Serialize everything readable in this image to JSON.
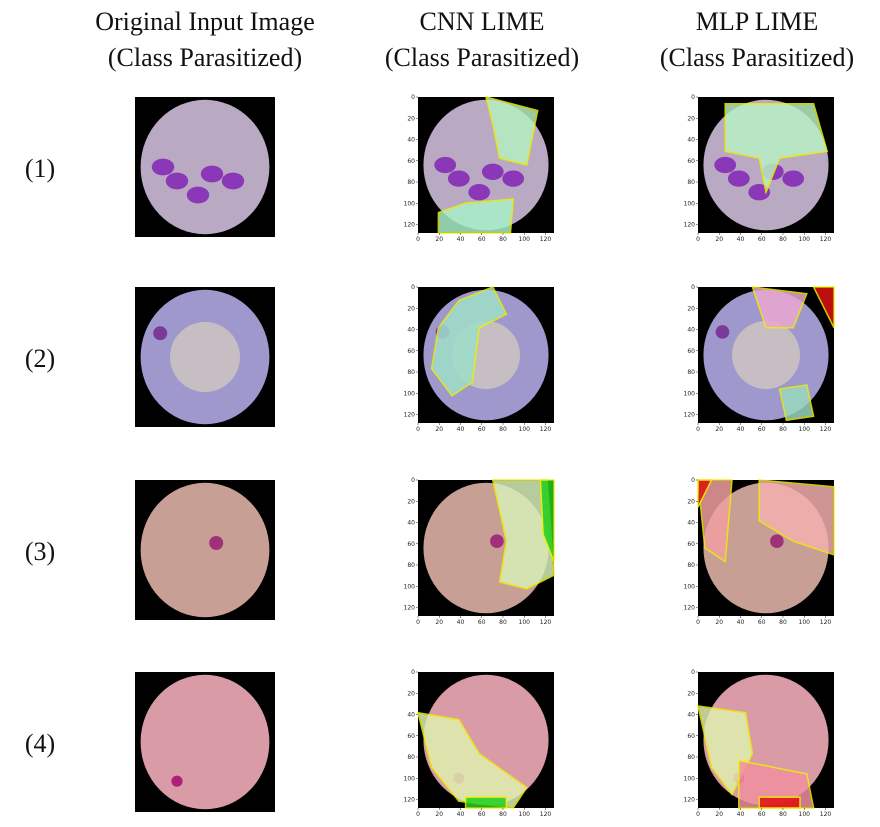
{
  "headers": [
    {
      "line1": "Original Input Image",
      "line2": "(Class Parasitized)"
    },
    {
      "line1": "CNN LIME",
      "line2": "(Class Parasitized)"
    },
    {
      "line1": "MLP LIME",
      "line2": "(Class Parasitized)"
    }
  ],
  "rows": [
    "(1)",
    "(2)",
    "(3)",
    "(4)"
  ],
  "axis_ticks": [
    0,
    20,
    40,
    60,
    80,
    100,
    120
  ]
}
